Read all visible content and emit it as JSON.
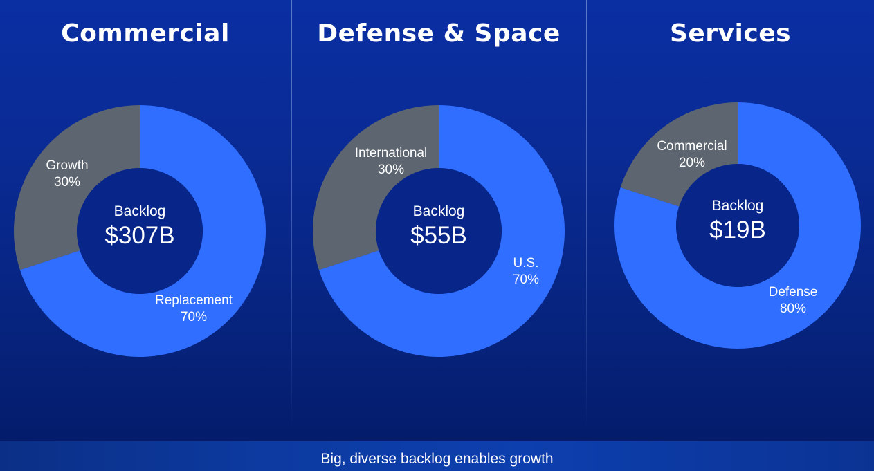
{
  "colors": {
    "primary_slice": "#2f6eff",
    "secondary_slice": "#5d6670",
    "hole": "#08258a"
  },
  "footer": {
    "text": "Big, diverse backlog enables growth"
  },
  "chart_data": [
    {
      "type": "pie",
      "title": "Commercial",
      "center_label": "Backlog",
      "center_value": "$307B",
      "slices": [
        {
          "label": "Replacement",
          "value": 70,
          "value_label": "70%",
          "color": "#2f6eff"
        },
        {
          "label": "Growth",
          "value": 30,
          "value_label": "30%",
          "color": "#5d6670"
        }
      ]
    },
    {
      "type": "pie",
      "title": "Defense & Space",
      "center_label": "Backlog",
      "center_value": "$55B",
      "slices": [
        {
          "label": "U.S.",
          "value": 70,
          "value_label": "70%",
          "color": "#2f6eff"
        },
        {
          "label": "International",
          "value": 30,
          "value_label": "30%",
          "color": "#5d6670"
        }
      ]
    },
    {
      "type": "pie",
      "title": "Services",
      "center_label": "Backlog",
      "center_value": "$19B",
      "slices": [
        {
          "label": "Defense",
          "value": 80,
          "value_label": "80%",
          "color": "#2f6eff"
        },
        {
          "label": "Commercial",
          "value": 20,
          "value_label": "20%",
          "color": "#5d6670"
        }
      ]
    }
  ]
}
